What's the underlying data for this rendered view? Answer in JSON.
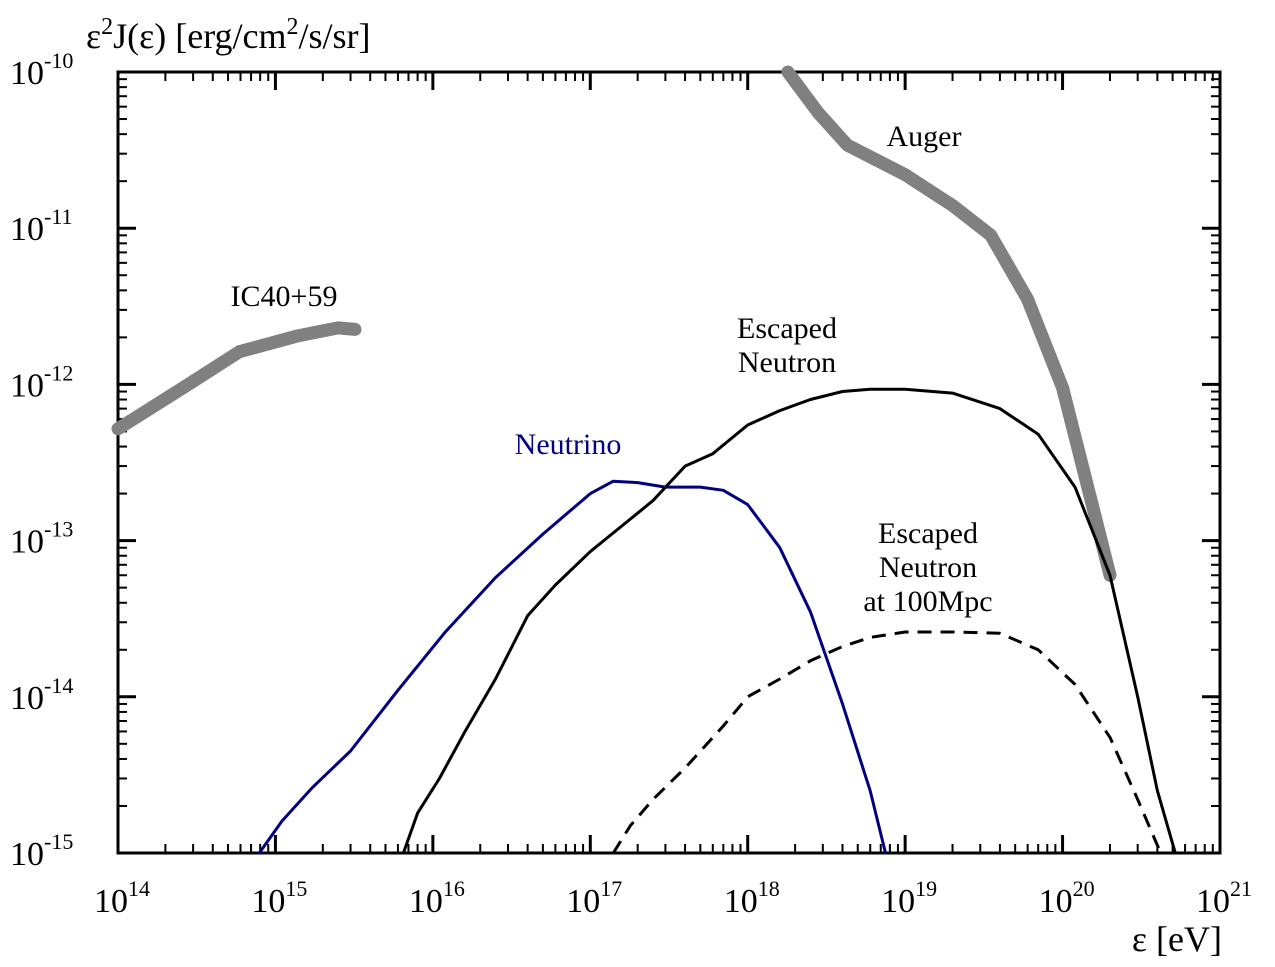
{
  "chart_data": {
    "type": "line",
    "ylabel": {
      "pre": "ε",
      "sup": "2",
      "mid": "J(ε) [erg/cm",
      "sup2": "2",
      "post": "/s/sr]"
    },
    "xlabel": "ε [eV]",
    "x_scale": "log",
    "y_scale": "log",
    "xlim": [
      100000000000000.0,
      1e+21
    ],
    "ylim": [
      1e-15,
      1e-10
    ],
    "grid": false,
    "x_ticks": [
      {
        "base": "10",
        "exp": "14",
        "value": 100000000000000.0
      },
      {
        "base": "10",
        "exp": "15",
        "value": 1000000000000000.0
      },
      {
        "base": "10",
        "exp": "16",
        "value": 1e+16
      },
      {
        "base": "10",
        "exp": "17",
        "value": 1e+17
      },
      {
        "base": "10",
        "exp": "18",
        "value": 1e+18
      },
      {
        "base": "10",
        "exp": "19",
        "value": 1e+19
      },
      {
        "base": "10",
        "exp": "20",
        "value": 1e+20
      },
      {
        "base": "10",
        "exp": "21",
        "value": 1e+21
      }
    ],
    "y_ticks": [
      {
        "base": "10",
        "exp": "-10",
        "value": 1e-10
      },
      {
        "base": "10",
        "exp": "-11",
        "value": 1e-11
      },
      {
        "base": "10",
        "exp": "-12",
        "value": 1e-12
      },
      {
        "base": "10",
        "exp": "-13",
        "value": 1e-13
      },
      {
        "base": "10",
        "exp": "-14",
        "value": 1e-14
      },
      {
        "base": "10",
        "exp": "-15",
        "value": 1e-15
      }
    ],
    "series": [
      {
        "name": "IC40+59",
        "color": "#808080",
        "style": "thick",
        "x": [
          100000000000000.0,
          280000000000000.0,
          590000000000000.0,
          1400000000000000.0,
          2500000000000000.0,
          3200000000000000.0
        ],
        "y": [
          5.2e-13,
          1e-12,
          1.62e-12,
          2.05e-12,
          2.3e-12,
          2.25e-12
        ]
      },
      {
        "name": "Auger",
        "color": "#808080",
        "style": "thick",
        "x": [
          1.8e+18,
          2.8e+18,
          4.3e+18,
          1e+19,
          2e+19,
          3.5e+19,
          6e+19,
          1e+20,
          1.5e+20,
          2e+20
        ],
        "y": [
          1e-10,
          5.5e-11,
          3.4e-11,
          2.2e-11,
          1.4e-11,
          9e-12,
          3.5e-12,
          9.5e-13,
          1.9e-13,
          6e-14
        ]
      },
      {
        "name": "Neutrino",
        "color": "#000080",
        "style": "solid",
        "x": [
          790000000000000.0,
          1100000000000000.0,
          1700000000000000.0,
          3000000000000000.0,
          6000000000000000.0,
          1.2e+16,
          2.5e+16,
          5e+16,
          1e+17,
          1.4e+17,
          2e+17,
          3e+17,
          5e+17,
          7e+17,
          1e+18,
          1.6e+18,
          2.5e+18,
          4e+18,
          6e+18,
          7.5e+18
        ],
        "y": [
          1e-15,
          1.6e-15,
          2.6e-15,
          4.5e-15,
          1.1e-14,
          2.6e-14,
          5.8e-14,
          1.1e-13,
          2e-13,
          2.4e-13,
          2.35e-13,
          2.2e-13,
          2.2e-13,
          2.1e-13,
          1.7e-13,
          9e-14,
          3.5e-14,
          9e-15,
          2.5e-15,
          1e-15
        ]
      },
      {
        "name": "Escaped Neutron",
        "color": "#000000",
        "style": "solid",
        "x": [
          6500000000000000.0,
          8000000000000000.0,
          1.1e+16,
          1.6e+16,
          2.5e+16,
          4e+16,
          6e+16,
          1e+17,
          1.6e+17,
          2.5e+17,
          4e+17,
          6e+17,
          1e+18,
          1.6e+18,
          2.5e+18,
          4e+18,
          6e+18,
          1e+19,
          2e+19,
          4e+19,
          7e+19,
          1.2e+20,
          2e+20,
          3e+20,
          4e+20,
          5.2e+20
        ],
        "y": [
          1e-15,
          1.8e-15,
          3e-15,
          6e-15,
          1.3e-14,
          3.3e-14,
          5.2e-14,
          8.5e-14,
          1.25e-13,
          1.8e-13,
          3e-13,
          3.6e-13,
          5.5e-13,
          6.8e-13,
          8e-13,
          9e-13,
          9.3e-13,
          9.3e-13,
          8.8e-13,
          7e-13,
          4.8e-13,
          2.2e-13,
          6e-14,
          1e-14,
          2.5e-15,
          1e-15
        ]
      },
      {
        "name": "Escaped Neutron at 100Mpc",
        "color": "#000000",
        "style": "dashed",
        "x": [
          1.4e+17,
          1.8e+17,
          2.5e+17,
          4e+17,
          7e+17,
          1e+18,
          1.6e+18,
          2.5e+18,
          4e+18,
          6e+18,
          1e+19,
          2e+19,
          4e+19,
          7e+19,
          1.2e+20,
          2e+20,
          3e+20,
          4.2e+20
        ],
        "y": [
          1e-15,
          1.5e-15,
          2.2e-15,
          3.5e-15,
          6.5e-15,
          1e-14,
          1.3e-14,
          1.7e-14,
          2.1e-14,
          2.4e-14,
          2.6e-14,
          2.6e-14,
          2.55e-14,
          2e-14,
          1.2e-14,
          5.5e-15,
          2.2e-15,
          1e-15
        ]
      }
    ],
    "annotations": [
      {
        "id": "ic",
        "lines": [
          "IC40+59"
        ],
        "color": "#000000"
      },
      {
        "id": "auger",
        "lines": [
          "Auger"
        ],
        "color": "#000000"
      },
      {
        "id": "neutrino",
        "lines": [
          "Neutrino"
        ],
        "color": "#000080"
      },
      {
        "id": "neutron",
        "lines": [
          "Escaped",
          "Neutron"
        ],
        "color": "#000000"
      },
      {
        "id": "neutron100",
        "lines": [
          "Escaped",
          "Neutron",
          "at 100Mpc"
        ],
        "color": "#000000"
      }
    ]
  }
}
